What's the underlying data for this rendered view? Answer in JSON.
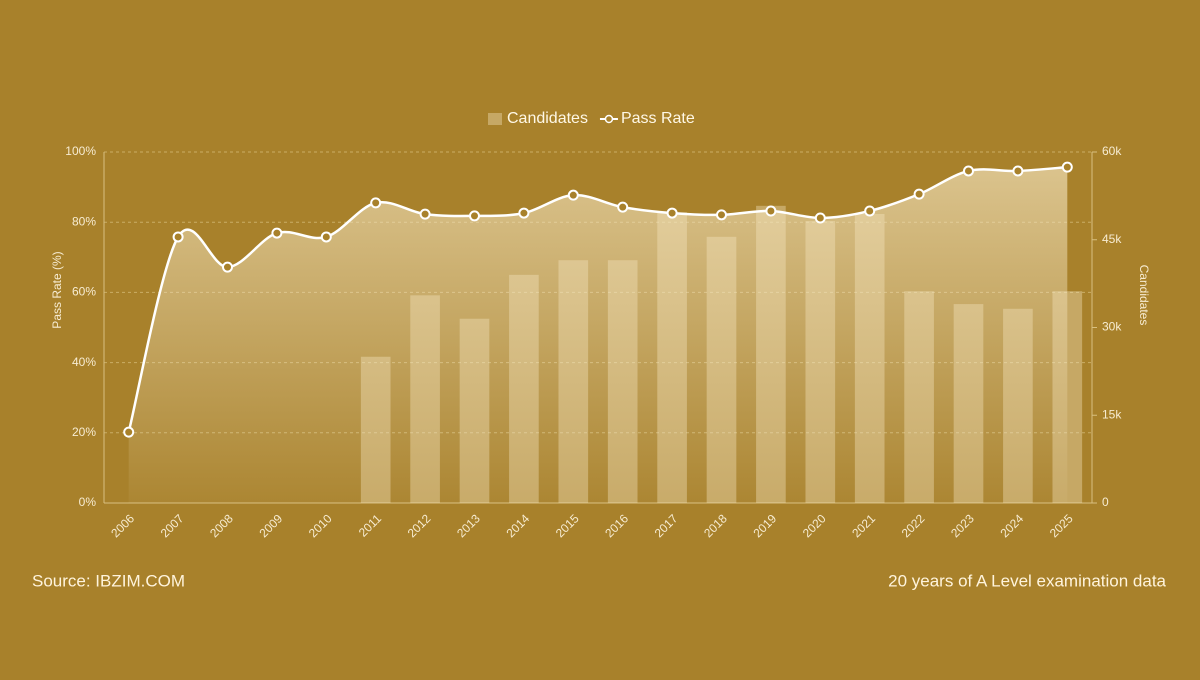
{
  "chart_data": {
    "type": "bar_line",
    "categories": [
      "2006",
      "2007",
      "2008",
      "2009",
      "2010",
      "2011",
      "2012",
      "2013",
      "2014",
      "2015",
      "2016",
      "2017",
      "2018",
      "2019",
      "2020",
      "2021",
      "2022",
      "2023",
      "2024",
      "2025"
    ],
    "series": [
      {
        "name": "Candidates",
        "type": "bar",
        "axis": "y2",
        "color": "#f3e3bd",
        "values": [
          null,
          null,
          null,
          null,
          null,
          25000,
          35500,
          31500,
          39000,
          41500,
          41500,
          49700,
          45500,
          50800,
          48200,
          49400,
          36200,
          34000,
          33200,
          36200
        ]
      },
      {
        "name": "Pass Rate",
        "type": "line",
        "color": "#ffffff",
        "values": [
          20.2,
          75.8,
          67.2,
          76.9,
          75.8,
          85.5,
          82.3,
          81.8,
          82.6,
          87.7,
          84.3,
          82.6,
          82.1,
          83.2,
          81.2,
          83.2,
          88.0,
          94.6,
          94.6,
          95.7
        ]
      }
    ],
    "ylabel": "Pass Rate (%)",
    "y2label": "Candidates",
    "ylim": [
      0,
      100
    ],
    "yticks": [
      {
        "value": 0,
        "label": "0%"
      },
      {
        "value": 20,
        "label": "20%"
      },
      {
        "value": 40,
        "label": "40%"
      },
      {
        "value": 60,
        "label": "60%"
      },
      {
        "value": 80,
        "label": "80%"
      },
      {
        "value": 100,
        "label": "100%"
      }
    ],
    "y2lim": [
      0,
      60000
    ],
    "y2ticks": [
      0,
      {
        "value": 15000,
        "label": "15k"
      },
      {
        "value": 30000,
        "label": "30k"
      },
      {
        "value": 45000,
        "label": "45k"
      },
      {
        "value": 60000,
        "label": "60k"
      }
    ],
    "grid": true,
    "legend": "top",
    "source": "Source: IBZIM.COM",
    "footnote": "20 years of A Level examination data"
  }
}
